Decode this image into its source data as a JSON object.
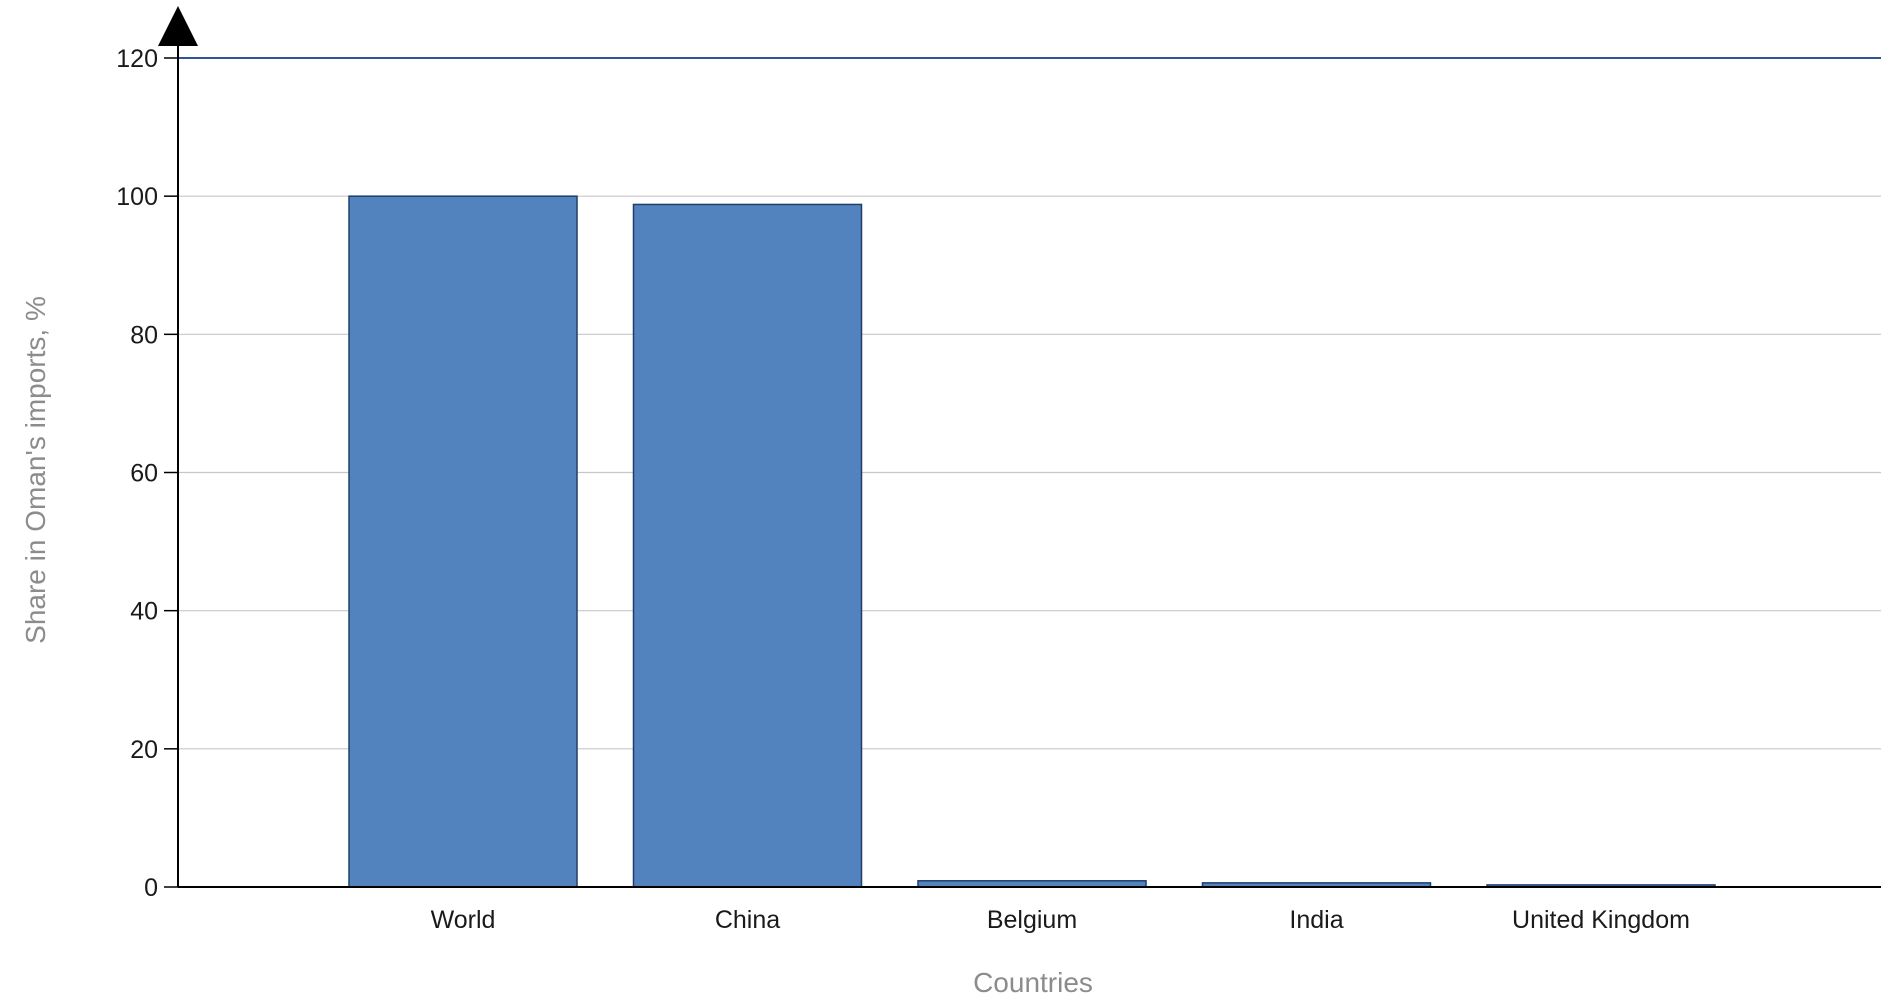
{
  "chart_data": {
    "type": "bar",
    "title": "",
    "xlabel": "Countries",
    "ylabel": "Share in Oman's imports, %",
    "categories": [
      "World",
      "China",
      "Belgium",
      "India",
      "United Kingdom"
    ],
    "series": [
      {
        "values": [
          100,
          98.8,
          0.9,
          0.6,
          0.3
        ]
      }
    ],
    "ylim": [
      0,
      120
    ],
    "yticks": [
      0,
      20,
      40,
      60,
      80,
      100,
      120
    ],
    "grid": true,
    "legend": "none",
    "colors": {
      "bar_fill": "#5383BE",
      "bar_stroke": "#1F3F6A",
      "gridline": "#C8C8C8",
      "top_line": "#2F5597",
      "axis": "#000000"
    }
  }
}
